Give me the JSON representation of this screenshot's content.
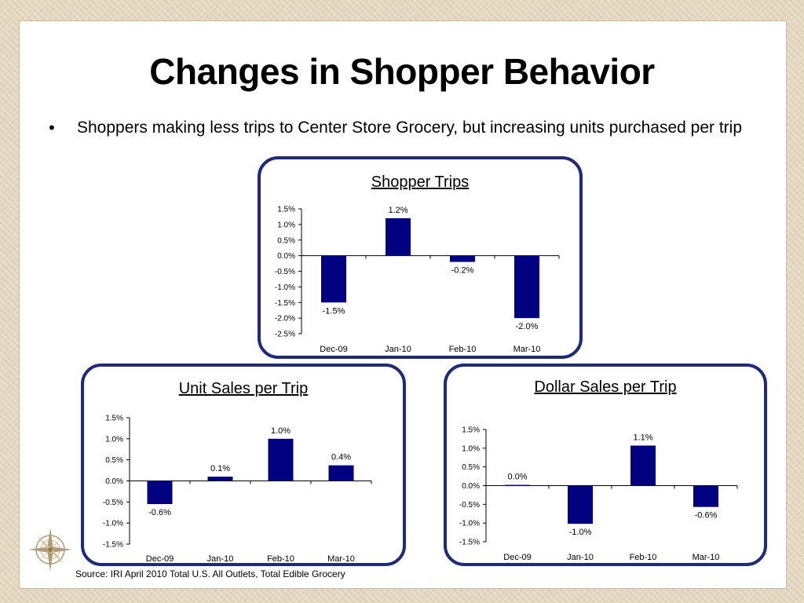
{
  "slide": {
    "title": "Changes in Shopper Behavior",
    "bullet_marker": "•",
    "bullet_text": "Shoppers making less trips to Center Store Grocery, but increasing units purchased per trip",
    "source": "Source: IRI April 2010 Total U.S. All Outlets, Total Edible Grocery"
  },
  "colors": {
    "bar": "#000080",
    "panel_border": "#1f2a7a"
  },
  "chart_data": [
    {
      "id": "shopper-trips",
      "type": "bar",
      "title": "Shopper Trips",
      "categories": [
        "Dec-09",
        "Jan-10",
        "Feb-10",
        "Mar-10"
      ],
      "values": [
        -1.5,
        1.2,
        -0.2,
        -2.0
      ],
      "data_labels": [
        "-1.5%",
        "1.2%",
        "-0.2%",
        "-2.0%"
      ],
      "ylim": [
        -2.5,
        1.5
      ],
      "yticks": [
        "1.5%",
        "1.0%",
        "0.5%",
        "0.0%",
        "-0.5%",
        "-1.0%",
        "-1.5%",
        "-2.0%",
        "-2.5%"
      ]
    },
    {
      "id": "unit-sales",
      "type": "bar",
      "title": "Unit Sales per Trip",
      "categories": [
        "Dec-09",
        "Jan-10",
        "Feb-10",
        "Mar-10"
      ],
      "values": [
        -0.55,
        0.1,
        1.0,
        0.37
      ],
      "data_labels": [
        "-0.6%",
        "0.1%",
        "1.0%",
        "0.4%"
      ],
      "ylim": [
        -1.5,
        1.5
      ],
      "yticks": [
        "1.5%",
        "1.0%",
        "0.5%",
        "0.0%",
        "-0.5%",
        "-1.0%",
        "-1.5%"
      ]
    },
    {
      "id": "dollar-sales",
      "type": "bar",
      "title": "Dollar Sales per Trip",
      "categories": [
        "Dec-09",
        "Jan-10",
        "Feb-10",
        "Mar-10"
      ],
      "values": [
        0.02,
        -1.02,
        1.07,
        -0.57
      ],
      "data_labels": [
        "0.0%",
        "-1.0%",
        "1.1%",
        "-0.6%"
      ],
      "ylim": [
        -1.5,
        1.5
      ],
      "yticks": [
        "1.5%",
        "1.0%",
        "0.5%",
        "0.0%",
        "-0.5%",
        "-1.0%",
        "-1.5%"
      ]
    }
  ]
}
